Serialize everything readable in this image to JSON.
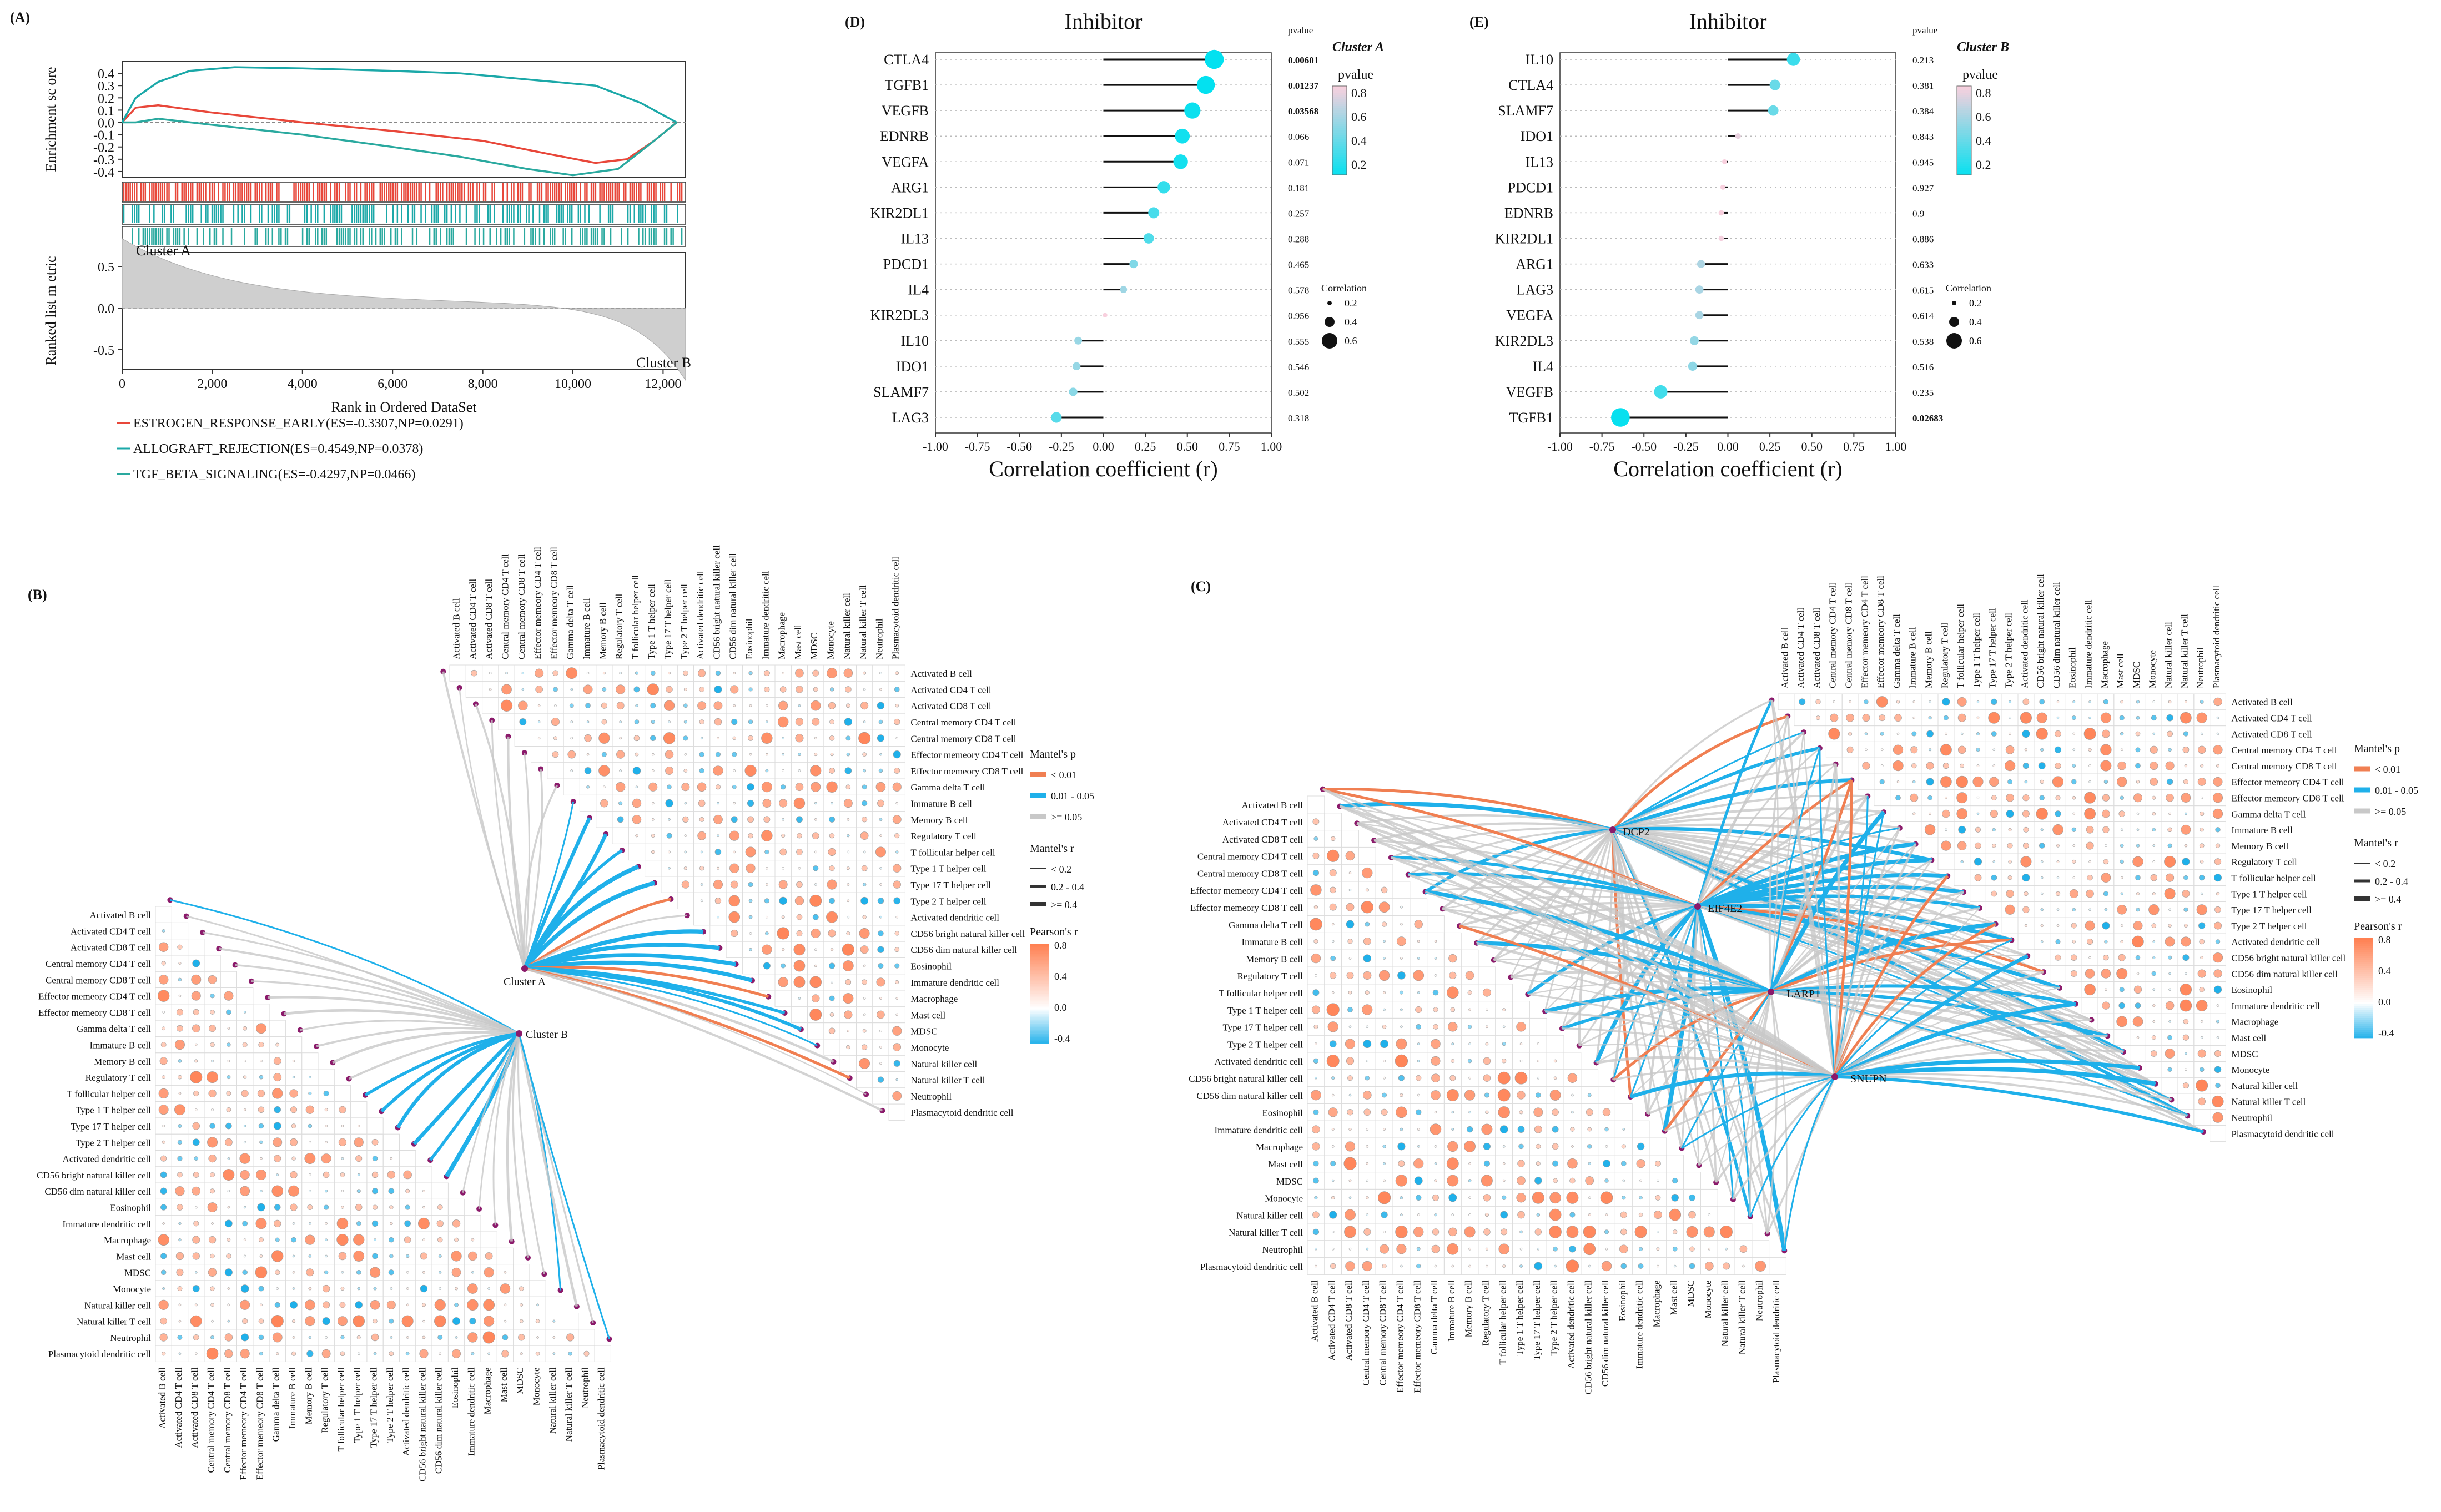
{
  "panel_labels": {
    "A": "(A)",
    "B": "(B)",
    "C": "(C)",
    "D": "(D)",
    "E": "(E)"
  },
  "cell_types": [
    "Activated B cell",
    "Activated CD4 T cell",
    "Activated CD8 T cell",
    "Central memory CD4 T cell",
    "Central memory CD8 T cell",
    "Effector memeory CD4 T cell",
    "Effector memeory CD8 T cell",
    "Gamma delta T cell",
    "Immature B cell",
    "Memory B cell",
    "Regulatory T cell",
    "T follicular helper cell",
    "Type 1 T helper cell",
    "Type 17 T helper cell",
    "Type 2 T helper cell",
    "Activated dendritic cell",
    "CD56 bright natural killer cell",
    "CD56 dim natural killer cell",
    "Eosinophil",
    "Immature dendritic cell",
    "Macrophage",
    "Mast cell",
    "MDSC",
    "Monocyte",
    "Natural killer cell",
    "Natural killer T cell",
    "Neutrophil",
    "Plasmacytoid dendritic cell"
  ],
  "legend": {
    "mantel_p_title": "Mantel's p",
    "mantel_p_items": [
      "< 0.01",
      "0.01 - 0.05",
      ">= 0.05"
    ],
    "mantel_r_title": "Mantel's r",
    "mantel_r_items": [
      "< 0.2",
      "0.2 - 0.4",
      ">= 0.4"
    ],
    "pearson_title": "Pearson's r",
    "pearson_ticks": [
      "0.8",
      "0.4",
      "0.0",
      "-0.4"
    ]
  },
  "colors": {
    "orange": "#f07f52",
    "blue": "#1fb0ea",
    "gray": "#c8c8c8",
    "purple": "#8b1a6b",
    "cyan_line": "#1ba8a8",
    "red_line": "#e8473a",
    "teal_line": "#2aa99f"
  },
  "chart_data": [
    {
      "id": "A",
      "type": "line",
      "subtitle_top": "Enrichment sc ore",
      "subtitle_bottom": "Ranked list m etric",
      "xlabel": "Rank in Ordered DataSet",
      "x_ticks": [
        "0",
        "2,000",
        "4,000",
        "6,000",
        "8,000",
        "10,000",
        "12,000"
      ],
      "x_range": [
        0,
        12500
      ],
      "y_ticks_top": [
        "0.4",
        "0.3",
        "0.2",
        "0.1",
        "0.0",
        "-0.1",
        "-0.2",
        "-0.3",
        "-0.4"
      ],
      "y_range_top": [
        -0.45,
        0.5
      ],
      "y_ticks_bottom": [
        "0.5",
        "0.0",
        "-0.5"
      ],
      "cluster_a": "Cluster A",
      "cluster_b": "Cluster B",
      "series": [
        {
          "name": "ESTROGEN_RESPONSE_EARLY(ES=-0.3307,NP=0.0291)",
          "color": "#e8473a",
          "x": [
            0,
            300,
            800,
            2000,
            4000,
            6000,
            8000,
            9500,
            10500,
            11200,
            11800,
            12300
          ],
          "y": [
            0,
            0.12,
            0.14,
            0.08,
            0.0,
            -0.07,
            -0.15,
            -0.26,
            -0.33,
            -0.3,
            -0.15,
            0.0
          ]
        },
        {
          "name": "ALLOGRAFT_REJECTION(ES=0.4549,NP=0.0378)",
          "color": "#1ba8a8",
          "x": [
            0,
            300,
            800,
            1500,
            2500,
            4000,
            6000,
            7500,
            9000,
            10500,
            11500,
            12000,
            12300
          ],
          "y": [
            0,
            0.2,
            0.33,
            0.42,
            0.45,
            0.44,
            0.42,
            0.4,
            0.35,
            0.3,
            0.16,
            0.06,
            0.0
          ]
        },
        {
          "name": "TGF_BETA_SIGNALING(ES=-0.4297,NP=0.0466)",
          "color": "#2aa99f",
          "x": [
            0,
            300,
            800,
            2000,
            4000,
            6000,
            7500,
            9000,
            10000,
            11000,
            11800,
            12300
          ],
          "y": [
            0,
            0.0,
            0.03,
            -0.02,
            -0.1,
            -0.2,
            -0.28,
            -0.38,
            -0.43,
            -0.38,
            -0.15,
            0.0
          ]
        }
      ]
    },
    {
      "id": "D",
      "type": "scatter",
      "title": "Inhibitor",
      "cluster": "Cluster A",
      "xlabel": "Correlation coefficient (r)",
      "x_ticks": [
        "-1.00",
        "-0.75",
        "-0.50",
        "-0.25",
        "0.00",
        "0.25",
        "0.50",
        "0.75",
        "1.00"
      ],
      "xlim": [
        -1,
        1
      ],
      "pvalue_header": "pvalue",
      "legend_p_title": "pvalue",
      "legend_p_ticks": [
        "0.8",
        "0.6",
        "0.4",
        "0.2"
      ],
      "legend_r_title": "Correlation",
      "legend_r_ticks": [
        "0.2",
        "0.4",
        "0.6"
      ],
      "genes": [
        "CTLA4",
        "TGFB1",
        "VEGFB",
        "EDNRB",
        "VEGFA",
        "ARG1",
        "KIR2DL1",
        "IL13",
        "PDCD1",
        "IL4",
        "KIR2DL3",
        "IL10",
        "IDO1",
        "SLAMF7",
        "LAG3"
      ],
      "r": [
        0.66,
        0.61,
        0.53,
        0.47,
        0.46,
        0.36,
        0.3,
        0.27,
        0.18,
        0.12,
        0.01,
        -0.15,
        -0.16,
        -0.18,
        -0.28
      ],
      "p": [
        0.00601,
        0.01237,
        0.03568,
        0.066,
        0.071,
        0.181,
        0.257,
        0.288,
        0.465,
        0.578,
        0.956,
        0.555,
        0.546,
        0.502,
        0.318
      ],
      "p_text": [
        "0.00601",
        "0.01237",
        "0.03568",
        "0.066",
        "0.071",
        "0.181",
        "0.257",
        "0.288",
        "0.465",
        "0.578",
        "0.956",
        "0.555",
        "0.546",
        "0.502",
        "0.318"
      ]
    },
    {
      "id": "E",
      "type": "scatter",
      "title": "Inhibitor",
      "cluster": "Cluster B",
      "xlabel": "Correlation coefficient (r)",
      "x_ticks": [
        "-1.00",
        "-0.75",
        "-0.50",
        "-0.25",
        "0.00",
        "0.25",
        "0.50",
        "0.75",
        "1.00"
      ],
      "xlim": [
        -1,
        1
      ],
      "pvalue_header": "pvalue",
      "legend_p_title": "pvalue",
      "legend_p_ticks": [
        "0.8",
        "0.6",
        "0.4",
        "0.2"
      ],
      "legend_r_title": "Correlation",
      "legend_r_ticks": [
        "0.2",
        "0.4",
        "0.6"
      ],
      "genes": [
        "IL10",
        "CTLA4",
        "SLAMF7",
        "IDO1",
        "IL13",
        "PDCD1",
        "EDNRB",
        "KIR2DL1",
        "ARG1",
        "LAG3",
        "VEGFA",
        "KIR2DL3",
        "IL4",
        "VEGFB",
        "TGFB1"
      ],
      "r": [
        0.39,
        0.28,
        0.27,
        0.06,
        -0.02,
        -0.03,
        -0.04,
        -0.04,
        -0.16,
        -0.17,
        -0.17,
        -0.2,
        -0.21,
        -0.4,
        -0.64
      ],
      "p": [
        0.213,
        0.381,
        0.384,
        0.843,
        0.945,
        0.927,
        0.9,
        0.886,
        0.633,
        0.615,
        0.614,
        0.538,
        0.516,
        0.235,
        0.02683
      ],
      "p_text": [
        "0.213",
        "0.381",
        "0.384",
        "0.843",
        "0.945",
        "0.927",
        "0.9",
        "0.886",
        "0.633",
        "0.615",
        "0.614",
        "0.538",
        "0.516",
        "0.235",
        "0.02683"
      ]
    },
    {
      "id": "B",
      "type": "heatmap",
      "nodes": [
        "Cluster A",
        "Cluster B"
      ]
    },
    {
      "id": "C",
      "type": "heatmap",
      "nodes": [
        "DCP2",
        "EIF4E2",
        "LARP1",
        "SNUPN"
      ]
    }
  ]
}
